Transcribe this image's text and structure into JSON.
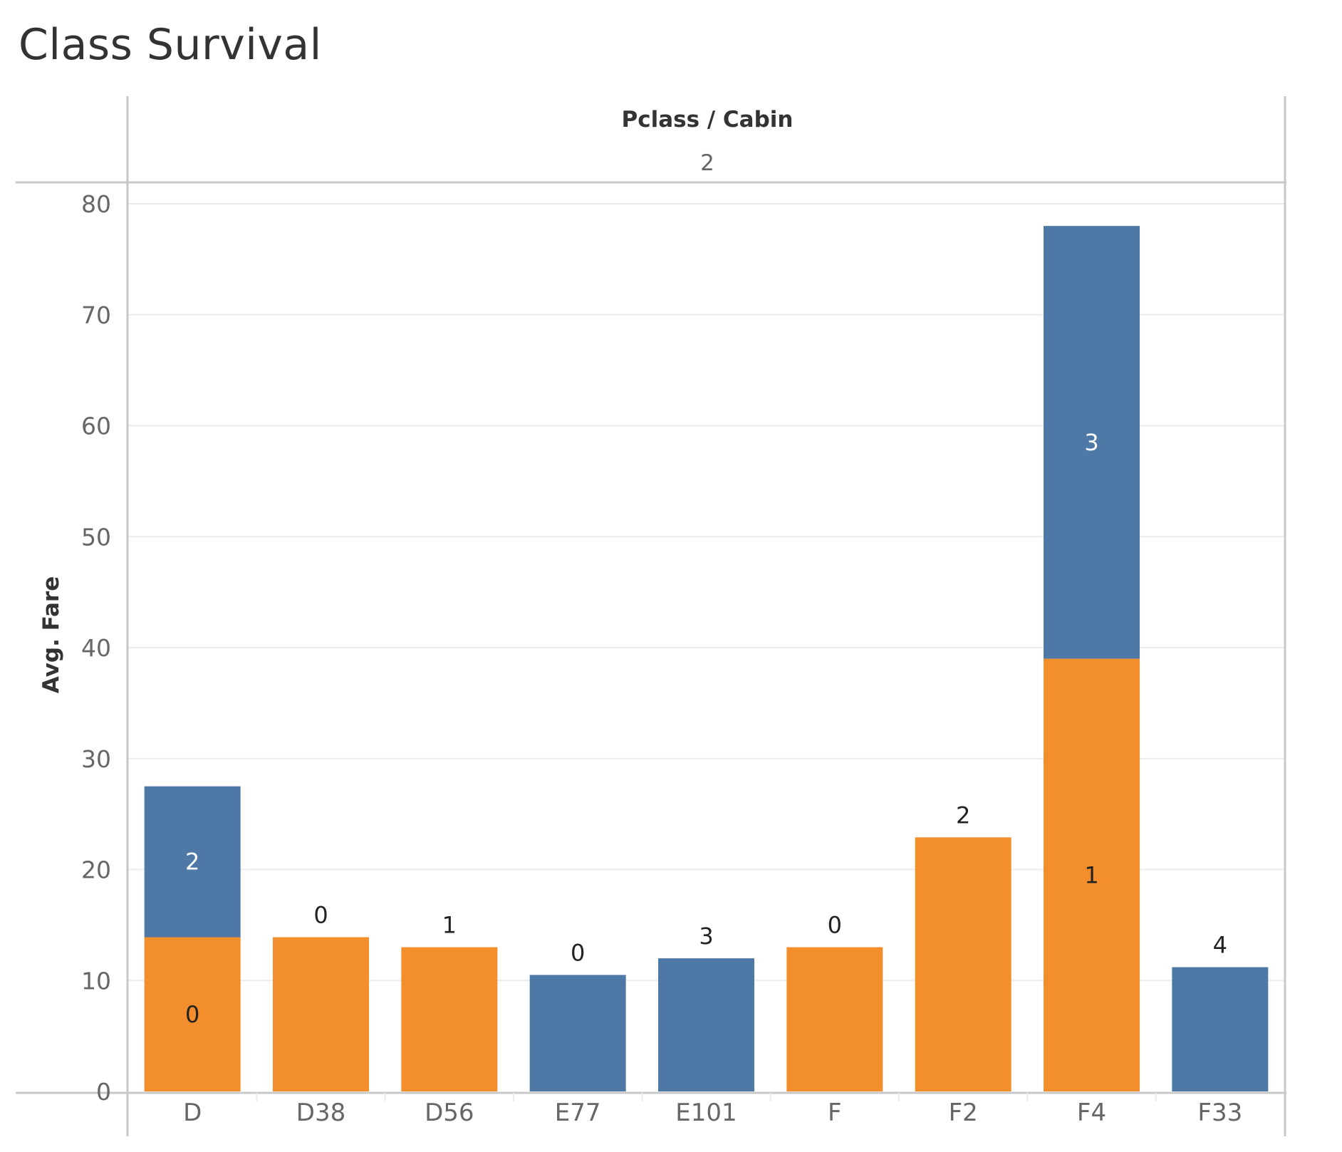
{
  "title": "Class Survival",
  "colors": {
    "orange": "#f28e2b",
    "blue": "#4e79a7",
    "grid": "#ececec",
    "axis": "#c8c8c8",
    "label_dark": "#222222",
    "label_light": "#ffffff"
  },
  "chart_data": {
    "type": "bar",
    "stacked": true,
    "title": "Class Survival",
    "column_header_title": "Pclass / Cabin",
    "column_header_value": "2",
    "xlabel": "",
    "ylabel": "Avg. Fare",
    "ylim": [
      0,
      80
    ],
    "yticks": [
      0,
      10,
      20,
      30,
      40,
      50,
      60,
      70,
      80
    ],
    "grid": true,
    "categories": [
      "D",
      "D38",
      "D56",
      "E77",
      "E101",
      "F",
      "F2",
      "F4",
      "F33"
    ],
    "bars": [
      {
        "category": "D",
        "segments": [
          {
            "color": "orange",
            "value": 13.9,
            "label": "0"
          },
          {
            "color": "blue",
            "value": 13.6,
            "label": "2"
          }
        ]
      },
      {
        "category": "D38",
        "segments": [
          {
            "color": "orange",
            "value": 13.9,
            "label": "0"
          }
        ]
      },
      {
        "category": "D56",
        "segments": [
          {
            "color": "orange",
            "value": 13.0,
            "label": "1"
          }
        ]
      },
      {
        "category": "E77",
        "segments": [
          {
            "color": "blue",
            "value": 10.5,
            "label": "0"
          }
        ]
      },
      {
        "category": "E101",
        "segments": [
          {
            "color": "blue",
            "value": 12.0,
            "label": "3"
          }
        ]
      },
      {
        "category": "F",
        "segments": [
          {
            "color": "orange",
            "value": 13.0,
            "label": "0"
          }
        ]
      },
      {
        "category": "F2",
        "segments": [
          {
            "color": "orange",
            "value": 22.9,
            "label": "2"
          }
        ]
      },
      {
        "category": "F4",
        "segments": [
          {
            "color": "orange",
            "value": 39.0,
            "label": "1"
          },
          {
            "color": "blue",
            "value": 39.0,
            "label": "3"
          }
        ]
      },
      {
        "category": "F33",
        "segments": [
          {
            "color": "blue",
            "value": 11.2,
            "label": "4"
          }
        ]
      }
    ]
  }
}
